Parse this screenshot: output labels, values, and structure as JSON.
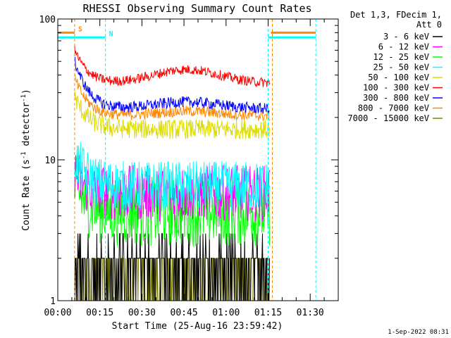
{
  "chart_data": {
    "type": "line",
    "title": "RHESSI Observing Summary Count Rates",
    "xlabel": "Start Time (25-Aug-16 23:59:42)",
    "ylabel_main": "Count Rate (s",
    "ylabel_sup1": "-1",
    "ylabel_mid": " detector",
    "ylabel_sup2": "-1",
    "ylabel_end": ")",
    "y_scale": "log",
    "ylim": [
      1,
      100
    ],
    "xlim_minutes": [
      0,
      100
    ],
    "y_ticks": [
      {
        "value": 1,
        "label": "1"
      },
      {
        "value": 10,
        "label": "10"
      },
      {
        "value": 100,
        "label": "100"
      }
    ],
    "x_ticks": [
      {
        "value": 0,
        "label": "00:00"
      },
      {
        "value": 15,
        "label": "00:15"
      },
      {
        "value": 30,
        "label": "00:30"
      },
      {
        "value": 45,
        "label": "00:45"
      },
      {
        "value": 60,
        "label": "01:00"
      },
      {
        "value": 75,
        "label": "01:15"
      },
      {
        "value": 90,
        "label": "01:30"
      }
    ],
    "legend_header": [
      "Det 1,3, FDecim 1,",
      "Att 0"
    ],
    "legend_position": "right",
    "data_interval_minutes": [
      6,
      75.5
    ],
    "series": [
      {
        "name": "3 - 6 keV",
        "color": "#000000",
        "base": 2.0,
        "spread": 0.45,
        "start": 1.0,
        "hump": 0.0
      },
      {
        "name": "6 - 12 keV",
        "color": "#ff00ff",
        "base": 5.8,
        "spread": 0.2,
        "start": 8.0,
        "hump": 0.0
      },
      {
        "name": "12 - 25 keV",
        "color": "#00ff00",
        "base": 4.3,
        "spread": 0.25,
        "start": 6.5,
        "hump": 0.0
      },
      {
        "name": "25 - 50 keV",
        "color": "#00ffff",
        "base": 6.5,
        "spread": 0.18,
        "start": 10.5,
        "hump": 0.0
      },
      {
        "name": "50 - 100 keV",
        "color": "#dddd00",
        "base": 16.5,
        "spread": 0.07,
        "start": 28,
        "hump": 0.0
      },
      {
        "name": "100 - 300 keV",
        "color": "#ff0000",
        "base": 35,
        "spread": 0.035,
        "start": 60,
        "hump": 0.25
      },
      {
        "name": "300 - 800 keV",
        "color": "#0000ff",
        "base": 23,
        "spread": 0.04,
        "start": 50,
        "hump": 0.12
      },
      {
        "name": "800 - 7000 keV",
        "color": "#ff8800",
        "base": 20.5,
        "spread": 0.04,
        "start": 38,
        "hump": 0.08
      },
      {
        "name": "7000 - 15000 keV",
        "color": "#808000",
        "base": 1.5,
        "spread": 0.2,
        "start": 1.5,
        "hump": 0.0
      }
    ],
    "flags": [
      {
        "label": "S",
        "color": "#ff8800",
        "value": 80,
        "segments": [
          [
            0,
            6
          ],
          [
            76,
            92
          ]
        ],
        "vlines": [
          6,
          76.5
        ]
      },
      {
        "label": "N",
        "color": "#00ffff",
        "value": 74,
        "segments": [
          [
            0,
            17
          ],
          [
            75,
            92
          ]
        ],
        "vlines": [
          17,
          75,
          92
        ]
      }
    ]
  },
  "footer": {
    "timestamp": "1-Sep-2022 08:31"
  }
}
